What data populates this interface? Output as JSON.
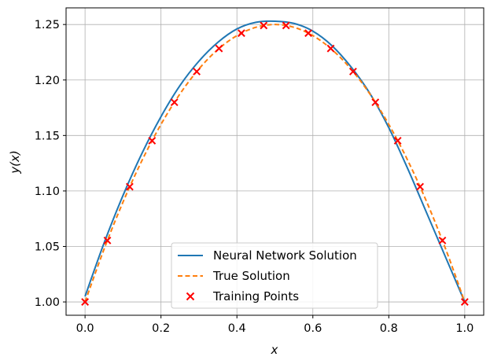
{
  "chart_data": {
    "type": "line",
    "title": "",
    "xlabel": "x",
    "ylabel": "y(x)",
    "xlim": [
      -0.05,
      1.05
    ],
    "ylim": [
      0.988,
      1.265
    ],
    "grid": true,
    "legend_position": "bottom-center",
    "x_ticks": [
      0.0,
      0.2,
      0.4,
      0.6,
      0.8,
      1.0
    ],
    "x_tick_labels": [
      "0.0",
      "0.2",
      "0.4",
      "0.6",
      "0.8",
      "1.0"
    ],
    "y_ticks": [
      1.0,
      1.05,
      1.1,
      1.15,
      1.2,
      1.25
    ],
    "y_tick_labels": [
      "1.00",
      "1.05",
      "1.10",
      "1.15",
      "1.20",
      "1.25"
    ],
    "series": [
      {
        "name": "Neural Network Solution",
        "kind": "line",
        "style": "solid",
        "color": "#1f77b4",
        "x": [
          0.0,
          0.05,
          0.1,
          0.15,
          0.2,
          0.25,
          0.3,
          0.35,
          0.4,
          0.45,
          0.5,
          0.55,
          0.6,
          0.65,
          0.7,
          0.75,
          0.8,
          0.85,
          0.9,
          0.95,
          1.0
        ],
        "y": [
          1.005,
          1.053,
          1.096,
          1.134,
          1.167,
          1.195,
          1.217,
          1.234,
          1.246,
          1.252,
          1.253,
          1.251,
          1.244,
          1.231,
          1.212,
          1.188,
          1.157,
          1.12,
          1.08,
          1.04,
          1.0
        ]
      },
      {
        "name": "True Solution",
        "kind": "line",
        "style": "dashed",
        "color": "#ff7f0e",
        "x": [
          0.0,
          0.05,
          0.1,
          0.15,
          0.2,
          0.25,
          0.3,
          0.35,
          0.4,
          0.45,
          0.5,
          0.55,
          0.6,
          0.65,
          0.7,
          0.75,
          0.8,
          0.85,
          0.9,
          0.95,
          1.0
        ],
        "y": [
          1.0,
          1.0475,
          1.09,
          1.1275,
          1.16,
          1.1875,
          1.21,
          1.2275,
          1.24,
          1.2475,
          1.25,
          1.2475,
          1.24,
          1.2275,
          1.21,
          1.1875,
          1.16,
          1.1275,
          1.09,
          1.0475,
          1.0
        ]
      },
      {
        "name": "Training Points",
        "kind": "scatter",
        "marker": "x",
        "color": "#ff0000",
        "x": [
          0.0,
          0.0588,
          0.1176,
          0.1765,
          0.2353,
          0.2941,
          0.3529,
          0.4118,
          0.4706,
          0.5294,
          0.5882,
          0.6471,
          0.7059,
          0.7647,
          0.8235,
          0.8824,
          0.9412,
          1.0
        ],
        "y": [
          1.0,
          1.0554,
          1.1038,
          1.1453,
          1.1799,
          1.2076,
          1.2284,
          1.2422,
          1.2491,
          1.2491,
          1.2422,
          1.2284,
          1.2076,
          1.1799,
          1.1453,
          1.1038,
          1.0554,
          1.0
        ]
      }
    ]
  }
}
